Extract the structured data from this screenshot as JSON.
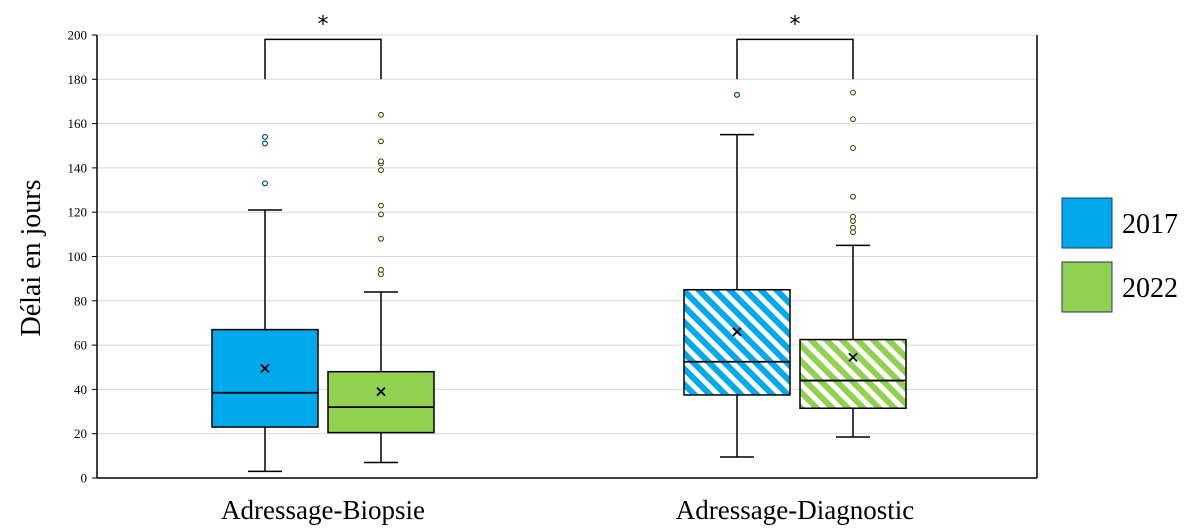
{
  "chart_data": {
    "type": "box",
    "ylabel": "Délai en jours",
    "ylim": [
      0,
      200
    ],
    "yticks": [
      0,
      20,
      40,
      60,
      80,
      100,
      120,
      140,
      160,
      180,
      200
    ],
    "grid": true,
    "legend_position": "right",
    "categories": [
      "Adressage-Biopsie",
      "Adressage-Diagnostic"
    ],
    "series": [
      {
        "name": "2017",
        "color": "#00a8ec"
      },
      {
        "name": "2022",
        "color": "#92d050"
      }
    ],
    "boxes": [
      {
        "category": "Adressage-Biopsie",
        "series": "2017",
        "pattern": "solid",
        "whisker_low": 3,
        "q1": 23,
        "median": 38.5,
        "q3": 67,
        "whisker_high": 121,
        "mean": 49.5,
        "outliers": [
          133,
          151,
          154
        ]
      },
      {
        "category": "Adressage-Biopsie",
        "series": "2022",
        "pattern": "solid",
        "whisker_low": 7,
        "q1": 20.5,
        "median": 32,
        "q3": 48,
        "whisker_high": 84,
        "mean": 39,
        "outliers": [
          92,
          94,
          108,
          119,
          123,
          139,
          142,
          143,
          152,
          164
        ]
      },
      {
        "category": "Adressage-Diagnostic",
        "series": "2017",
        "pattern": "hatched",
        "whisker_low": 9.5,
        "q1": 37.5,
        "median": 52.5,
        "q3": 85,
        "whisker_high": 155,
        "mean": 66,
        "outliers": [
          173
        ]
      },
      {
        "category": "Adressage-Diagnostic",
        "series": "2022",
        "pattern": "hatched",
        "whisker_low": 18.5,
        "q1": 31.5,
        "median": 44,
        "q3": 62.5,
        "whisker_high": 105,
        "mean": 54.5,
        "outliers": [
          111,
          113,
          116,
          118,
          127,
          149,
          162,
          174
        ]
      }
    ],
    "annotations": [
      {
        "text": "*",
        "between": [
          "Adressage-Biopsie 2017",
          "Adressage-Biopsie 2022"
        ],
        "bracket_value": 198
      },
      {
        "text": "*",
        "between": [
          "Adressage-Diagnostic 2017",
          "Adressage-Diagnostic 2022"
        ],
        "bracket_value": 198
      }
    ]
  }
}
